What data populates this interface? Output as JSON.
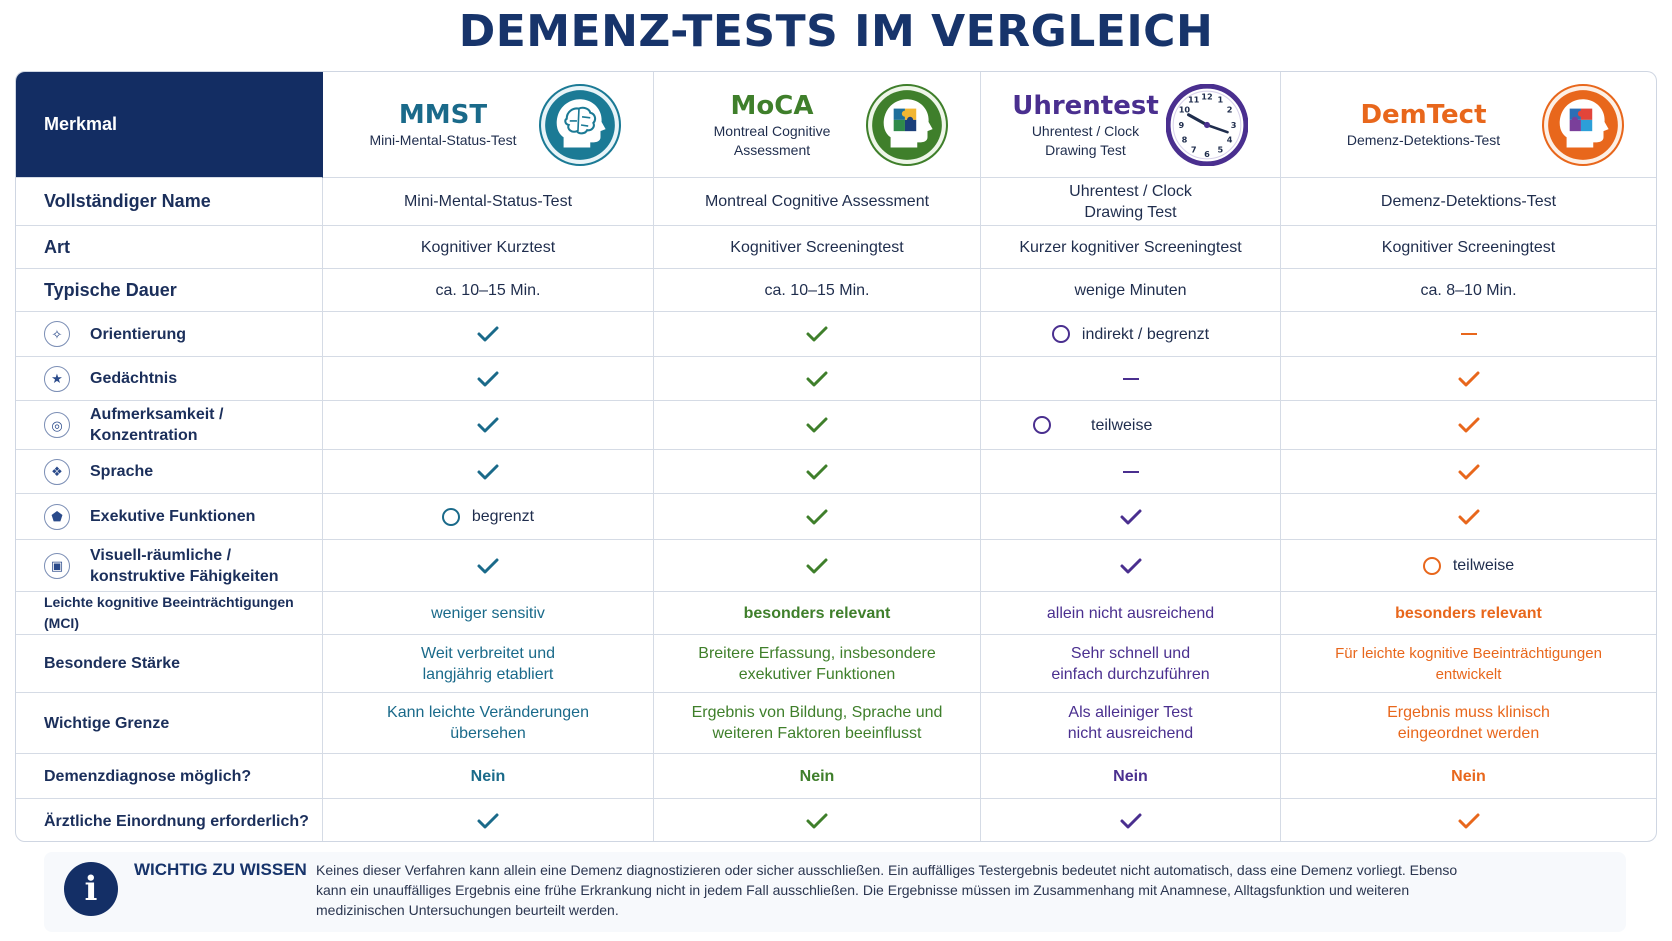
{
  "title": "DEMENZ-TESTS IM VERGLEICH",
  "colors": {
    "navy": "#132d63",
    "mmst": "#1a6a8a",
    "moca": "#3f7f2b",
    "uhr": "#4a2f8f",
    "demtect": "#e8671c"
  },
  "header": {
    "merkmal": "Merkmal",
    "tests": [
      {
        "name": "MMST",
        "sub": "Mini-Mental-Status-Test",
        "icon": "brain-head-icon"
      },
      {
        "name": "MoCA",
        "sub": "Montreal Cognitive Assessment",
        "icon": "puzzle-head-icon"
      },
      {
        "name": "Uhrentest",
        "sub": "Uhrentest / Clock Drawing Test",
        "icon": "clock-icon"
      },
      {
        "name": "DemTect",
        "sub": "Demenz-Detektions-Test",
        "icon": "puzzle-head-icon"
      }
    ]
  },
  "rows": {
    "name": {
      "label": "Vollständiger Name",
      "values": [
        "Mini-Mental-Status-Test",
        "Montreal Cognitive Assessment",
        "Uhrentest / Clock Drawing Test",
        "Demenz-Detektions-Test"
      ]
    },
    "art": {
      "label": "Art",
      "values": [
        "Kognitiver Kurztest",
        "Kognitiver Screeningtest",
        "Kurzer kognitiver Screeningtest",
        "Kognitiver Screeningtest"
      ]
    },
    "dauer": {
      "label": "Typische Dauer",
      "values": [
        "ca. 10–15 Min.",
        "ca. 10–15 Min.",
        "wenige Minuten",
        "ca. 8–10 Min."
      ]
    },
    "orientierung": {
      "label": "Orientierung",
      "icon": "compass-icon",
      "uhr_text": "indirekt / begrenzt"
    },
    "gedaechtnis": {
      "label": "Gedächtnis",
      "icon": "star-icon"
    },
    "aufmerksamkeit": {
      "label": "Aufmerksamkeit / Konzentration",
      "icon": "target-icon",
      "uhr_text": "teilweise"
    },
    "sprache": {
      "label": "Sprache",
      "icon": "speech-icon"
    },
    "exekutiv": {
      "label": "Exekutive Funktionen",
      "icon": "gear-icon",
      "mmst_text": "begrenzt"
    },
    "visuell": {
      "label": "Visuell-räumliche / konstruktive Fähigkeiten",
      "icon": "shapes-icon",
      "dem_text": "teilweise"
    },
    "mci": {
      "label": "Leichte kognitive Beeinträchtigungen (MCI)",
      "values": [
        "weniger sensitiv",
        "besonders relevant",
        "allein nicht ausreichend",
        "besonders relevant"
      ]
    },
    "staerke": {
      "label": "Besondere Stärke",
      "values": [
        "Weit verbreitet und langjährig etabliert",
        "Breitere Erfassung, insbesondere exekutiver Funktionen",
        "Sehr schnell und einfach durchzuführen",
        "Für leichte kognitive Beeinträchtigungen entwickelt"
      ]
    },
    "grenze": {
      "label": "Wichtige Grenze",
      "values": [
        "Kann leichte Veränderungen übersehen",
        "Ergebnis von Bildung, Sprache und weiteren Faktoren beeinflusst",
        "Als alleiniger Test nicht ausreichend",
        "Ergebnis muss klinisch eingeordnet werden"
      ]
    },
    "diagnose": {
      "label": "Demenzdiagnose möglich?",
      "values": [
        "Nein",
        "Nein",
        "Nein",
        "Nein"
      ]
    },
    "einordnung": {
      "label": "Ärztliche Einordnung erforderlich?"
    }
  },
  "info": {
    "title": "WICHTIG ZU WISSEN",
    "text": "Keines dieser Verfahren kann allein eine Demenz diagnostizieren oder sicher ausschließen. Ein auffälliges Testergebnis bedeutet nicht automatisch, dass eine Demenz vorliegt. Ebenso kann ein unauffälliges Ergebnis eine frühe Erkrankung nicht in jedem Fall ausschließen. Die Ergebnisse müssen im Zusammenhang mit Anamnese, Alltagsfunktion und weiteren medizinischen Untersuchungen beurteilt werden."
  }
}
